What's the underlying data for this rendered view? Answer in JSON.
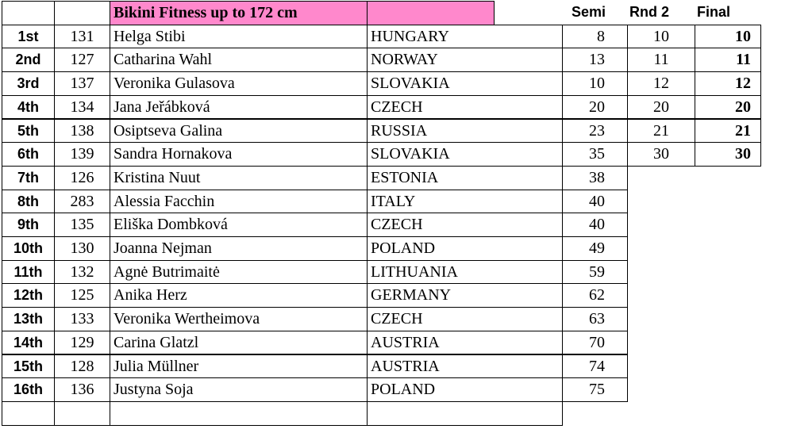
{
  "table": {
    "title": "Bikini Fitness up to 172 cm",
    "columns": [
      "Semi",
      "Rnd 2",
      "Final"
    ],
    "rows": [
      {
        "rank": "1st",
        "number": 131,
        "name": "Helga Stibi",
        "country": "HUNGARY",
        "semi": 8,
        "rnd2": 10,
        "final": 10
      },
      {
        "rank": "2nd",
        "number": 127,
        "name": "Catharina Wahl",
        "country": "NORWAY",
        "semi": 13,
        "rnd2": 11,
        "final": 11
      },
      {
        "rank": "3rd",
        "number": 137,
        "name": "Veronika Gulasova",
        "country": "SLOVAKIA",
        "semi": 10,
        "rnd2": 12,
        "final": 12
      },
      {
        "rank": "4th",
        "number": 134,
        "name": "Jana Jeřábková",
        "country": "CZECH",
        "semi": 20,
        "rnd2": 20,
        "final": 20
      },
      {
        "rank": "5th",
        "number": 138,
        "name": "Osiptseva Galina",
        "country": "RUSSIA",
        "semi": 23,
        "rnd2": 21,
        "final": 21
      },
      {
        "rank": "6th",
        "number": 139,
        "name": "Sandra Hornakova",
        "country": "SLOVAKIA",
        "semi": 35,
        "rnd2": 30,
        "final": 30
      },
      {
        "rank": "7th",
        "number": 126,
        "name": "Kristina Nuut",
        "country": "ESTONIA",
        "semi": 38
      },
      {
        "rank": "8th",
        "number": 283,
        "name": "Alessia Facchin",
        "country": "ITALY",
        "semi": 40
      },
      {
        "rank": "9th",
        "number": 135,
        "name": "Eliška Dombková",
        "country": "CZECH",
        "semi": 40
      },
      {
        "rank": "10th",
        "number": 130,
        "name": "Joanna Nejman",
        "country": "POLAND",
        "semi": 49
      },
      {
        "rank": "11th",
        "number": 132,
        "name": "Agnė Butrimaitė",
        "country": "LITHUANIA",
        "semi": 59
      },
      {
        "rank": "12th",
        "number": 125,
        "name": "Anika Herz",
        "country": "GERMANY",
        "semi": 62
      },
      {
        "rank": "13th",
        "number": 133,
        "name": "Veronika Wertheimova",
        "country": "CZECH",
        "semi": 63
      },
      {
        "rank": "14th",
        "number": 129,
        "name": "Carina Glatzl",
        "country": "AUSTRIA",
        "semi": 70
      },
      {
        "rank": "15th",
        "number": 128,
        "name": "Julia Müllner",
        "country": "AUSTRIA",
        "semi": 74
      },
      {
        "rank": "16th",
        "number": 136,
        "name": "Justyna Soja",
        "country": "POLAND",
        "semi": 75
      }
    ]
  }
}
